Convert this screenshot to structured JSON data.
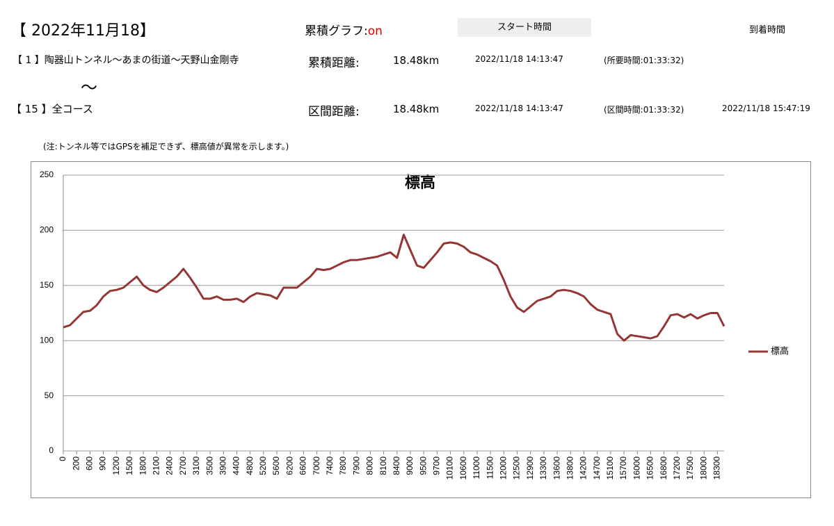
{
  "header": {
    "date_title": "【 2022年11月18】",
    "cumulative_label": "累積グラフ:",
    "cumulative_state": "on",
    "start_button": "スタート時間",
    "arrival_label": "到着時間",
    "row1": {
      "route": "【 1 】陶器山トンネル～あまの街道～天野山金剛寺",
      "distance_label": "累積距離:",
      "distance": "18.48km",
      "start": "2022/11/18 14:13:47",
      "duration": "(所要時間:01:33:32)"
    },
    "tilde": "～",
    "row2": {
      "route": "【 15 】全コース",
      "distance_label": "区間距離:",
      "distance": "18.48km",
      "start": "2022/11/18 14:13:47",
      "duration": "(区間時間:01:33:32)",
      "arrival": "2022/11/18 15:47:19"
    },
    "note": "(注:トンネル等ではGPSを補足できず、標高値が異常を示します。)"
  },
  "chart_data": {
    "type": "line",
    "title": "標高",
    "categories": [
      "0",
      null,
      "200",
      null,
      "600",
      null,
      "900",
      null,
      "1200",
      null,
      "1500",
      null,
      "1800",
      null,
      "2100",
      null,
      "2400",
      null,
      "2700",
      null,
      "3100",
      null,
      "3500",
      null,
      "3900",
      null,
      "4400",
      null,
      "4800",
      null,
      "5200",
      null,
      "5600",
      null,
      "6200",
      null,
      "6600",
      null,
      "7000",
      null,
      "7400",
      null,
      "7800",
      null,
      "7900",
      null,
      "8000",
      null,
      "8100",
      null,
      "8400",
      null,
      "9000",
      null,
      "9500",
      null,
      "9700",
      null,
      "10100",
      null,
      "10600",
      null,
      "11000",
      null,
      "11500",
      null,
      "12000",
      null,
      "12500",
      null,
      "12900",
      null,
      "13300",
      null,
      "13600",
      null,
      "13800",
      null,
      "14200",
      null,
      "14700",
      null,
      "15100",
      null,
      "15700",
      null,
      "16000",
      null,
      "16500",
      null,
      "16800",
      null,
      "17200",
      null,
      "17500",
      null,
      "18000",
      null,
      "18300",
      null
    ],
    "series": [
      {
        "name": "標高",
        "color": "#943634",
        "values": [
          112,
          114,
          120,
          126,
          127,
          132,
          140,
          145,
          146,
          148,
          153,
          158,
          150,
          146,
          144,
          148,
          153,
          158,
          165,
          157,
          148,
          138,
          138,
          140,
          137,
          137,
          138,
          135,
          140,
          143,
          142,
          141,
          138,
          148,
          148,
          148,
          153,
          158,
          165,
          164,
          165,
          168,
          171,
          173,
          173,
          174,
          175,
          176,
          178,
          180,
          175,
          196,
          182,
          168,
          166,
          173,
          180,
          188,
          189,
          188,
          185,
          180,
          178,
          175,
          172,
          168,
          155,
          140,
          130,
          126,
          131,
          136,
          138,
          140,
          145,
          146,
          145,
          143,
          140,
          133,
          128,
          126,
          124,
          106,
          100,
          105,
          104,
          103,
          102,
          104,
          113,
          123,
          124,
          121,
          124,
          120,
          123,
          125,
          125,
          113
        ]
      }
    ],
    "ylim": [
      0,
      250
    ],
    "yticks": [
      0,
      50,
      100,
      150,
      200,
      250
    ],
    "grid": true,
    "legend": "right"
  }
}
